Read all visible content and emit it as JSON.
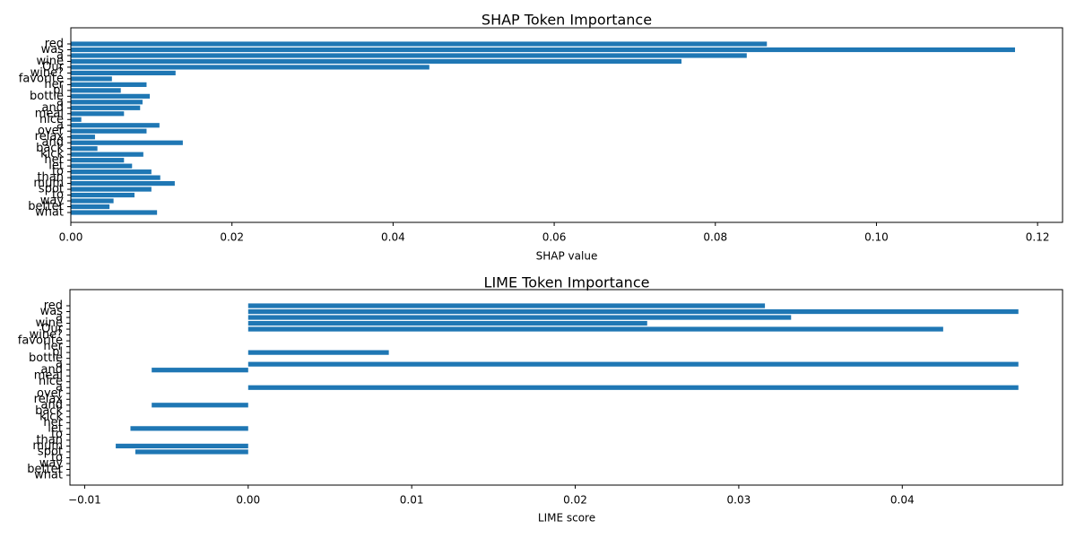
{
  "chart_data": [
    {
      "type": "barh",
      "title": "SHAP Token Importance",
      "xlabel": "SHAP value",
      "color": "#1f77b4",
      "categories": [
        "red",
        "was",
        "a",
        "wine",
        "Our",
        "wine?",
        "favorite",
        "her",
        "pl",
        "bottle",
        "a",
        "and",
        "meal",
        "nice",
        "a",
        "over",
        "relax",
        "and",
        "back",
        "kick",
        "her",
        "let",
        "to",
        "than",
        "mum",
        "spot",
        "to",
        "way",
        "better",
        "what"
      ],
      "values": [
        0.0864,
        0.1172,
        0.0839,
        0.0758,
        0.0445,
        0.013,
        0.0051,
        0.0094,
        0.0062,
        0.0098,
        0.0089,
        0.0086,
        0.0066,
        0.0013,
        0.011,
        0.0094,
        0.003,
        0.0139,
        0.0033,
        0.009,
        0.0066,
        0.0076,
        0.01,
        0.0111,
        0.0129,
        0.01,
        0.0079,
        0.0053,
        0.0048,
        0.0107
      ],
      "xlim": [
        0,
        0.1231
      ],
      "xticks": [
        {
          "value": 0,
          "label": "0.00"
        },
        0.02,
        0.04,
        0.06,
        0.08,
        {
          "value": 0.1,
          "label": "0.10"
        },
        0.12
      ]
    },
    {
      "type": "barh",
      "title": "LIME Token Importance",
      "xlabel": "LIME score",
      "color": "#1f77b4",
      "categories": [
        "red",
        "was",
        "a",
        "wine",
        "Our",
        "wine?",
        "favorite",
        "her",
        "pl",
        "bottle",
        "a",
        "and",
        "meal",
        "nice",
        "a",
        "over",
        "relax",
        "and",
        "back",
        "kick",
        "her",
        "let",
        "to",
        "than",
        "mum",
        "spot",
        "to",
        "way",
        "better",
        "what"
      ],
      "values": [
        0.0316,
        0.0471,
        0.0332,
        0.0244,
        0.0425,
        0,
        0,
        0,
        0.0086,
        0,
        0.0471,
        -0.0059,
        0,
        0,
        0.0471,
        0,
        0,
        -0.0059,
        0,
        0,
        0,
        -0.0072,
        0,
        0,
        -0.0081,
        -0.0069,
        0,
        0,
        0,
        0
      ],
      "xlim": [
        -0.0109,
        0.0498
      ],
      "xticks": [
        {
          "value": -0.01,
          "label": "−0.01"
        },
        {
          "value": 0,
          "label": "0.00"
        },
        0.01,
        0.02,
        0.03,
        0.04
      ]
    }
  ]
}
